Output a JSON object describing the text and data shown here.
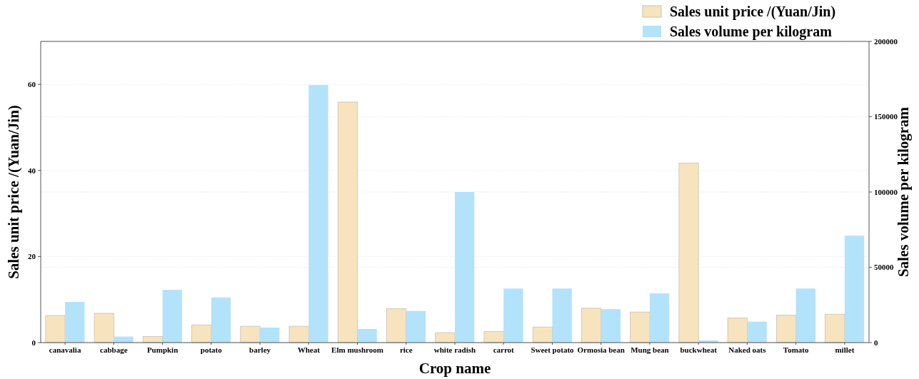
{
  "chart_data": {
    "type": "bar",
    "xlabel": "Crop name",
    "ylabel": "Sales unit price /(Yuan/Jin)",
    "y2label": "Sales volume per kilogram",
    "categories": [
      "canavalia",
      "cabbage",
      "Pumpkin",
      "potato",
      "barley",
      "Wheat",
      "Elm mushroom",
      "rice",
      "white radish",
      "carrot",
      "Sweet potato",
      "Ormosia bean",
      "Mung bean",
      "buckwheat",
      "Naked oats",
      "Tomato",
      "millet"
    ],
    "series": [
      {
        "name": "Sales unit price /(Yuan/Jin)",
        "color": "#f7e4bf",
        "values": [
          6.3,
          6.8,
          1.4,
          4.1,
          3.8,
          3.8,
          55.9,
          7.9,
          2.3,
          2.6,
          3.6,
          8.0,
          7.1,
          41.7,
          5.7,
          6.4,
          6.6
        ]
      },
      {
        "name": "Sales volume per kilogram",
        "color": "#b3e2fb",
        "axis": "y2",
        "values": [
          27000,
          4000,
          35000,
          30000,
          10000,
          171000,
          9000,
          21000,
          100000,
          35900,
          35900,
          22200,
          32700,
          1400,
          13900,
          35900,
          71000
        ]
      }
    ],
    "ylim": [
      0,
      70
    ],
    "yticks": [
      0,
      20,
      40,
      60
    ],
    "y2lim": [
      0,
      200000
    ],
    "y2ticks": [
      0,
      50000,
      100000,
      150000,
      200000
    ],
    "grid": true,
    "legend": "top right"
  }
}
